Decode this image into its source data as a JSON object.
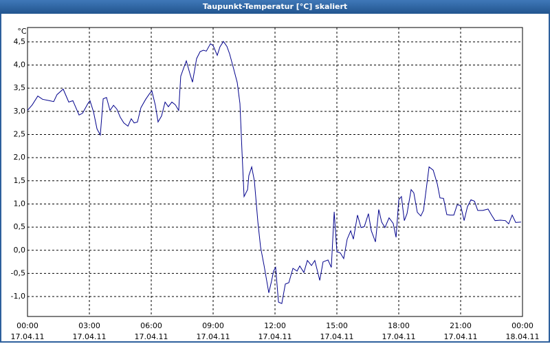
{
  "chart_data": {
    "type": "line",
    "title": "Taupunkt-Temperatur [°C] skaliert",
    "ylabel": "°C",
    "color": "#00008b",
    "grid": true,
    "xlim": [
      0,
      24
    ],
    "ylim": [
      -1.43,
      4.81
    ],
    "xticks": [
      {
        "value": 0,
        "label": "00:00\n17.04.11"
      },
      {
        "value": 3,
        "label": "03:00\n17.04.11"
      },
      {
        "value": 6,
        "label": "06:00\n17.04.11"
      },
      {
        "value": 9,
        "label": "09:00\n17.04.11"
      },
      {
        "value": 12,
        "label": "12:00\n17.04.11"
      },
      {
        "value": 15,
        "label": "15:00\n17.04.11"
      },
      {
        "value": 18,
        "label": "18:00\n17.04.11"
      },
      {
        "value": 21,
        "label": "21:00\n17.04.11"
      },
      {
        "value": 24,
        "label": "00:00\n18.04.11"
      }
    ],
    "yticks": [
      {
        "value": -1.0,
        "label": "-1,0"
      },
      {
        "value": -0.5,
        "label": "-0,5"
      },
      {
        "value": 0.0,
        "label": "0,0"
      },
      {
        "value": 0.5,
        "label": "0,5"
      },
      {
        "value": 1.0,
        "label": "1,0"
      },
      {
        "value": 1.5,
        "label": "1,5"
      },
      {
        "value": 2.0,
        "label": "2,0"
      },
      {
        "value": 2.5,
        "label": "2,5"
      },
      {
        "value": 3.0,
        "label": "3,0"
      },
      {
        "value": 3.5,
        "label": "3,5"
      },
      {
        "value": 4.0,
        "label": "4,0"
      },
      {
        "value": 4.5,
        "label": "4,5"
      }
    ],
    "x": [
      0,
      0.23,
      0.5,
      0.73,
      1.07,
      1.27,
      1.43,
      1.73,
      2.0,
      2.2,
      2.5,
      2.67,
      2.93,
      3.03,
      3.2,
      3.37,
      3.53,
      3.67,
      3.83,
      4.0,
      4.17,
      4.33,
      4.5,
      4.67,
      4.87,
      5.03,
      5.17,
      5.33,
      5.5,
      5.73,
      5.93,
      6.03,
      6.2,
      6.33,
      6.5,
      6.67,
      6.83,
      7.0,
      7.17,
      7.33,
      7.43,
      7.6,
      7.7,
      7.87,
      8.0,
      8.2,
      8.37,
      8.53,
      8.67,
      8.87,
      9.0,
      9.2,
      9.33,
      9.5,
      9.67,
      9.8,
      10.0,
      10.17,
      10.3,
      10.4,
      10.5,
      10.67,
      10.73,
      10.87,
      11.0,
      11.17,
      11.3,
      11.47,
      11.7,
      11.83,
      11.93,
      12.03,
      12.17,
      12.33,
      12.5,
      12.67,
      12.87,
      13.07,
      13.2,
      13.4,
      13.57,
      13.77,
      13.93,
      14.17,
      14.33,
      14.57,
      14.73,
      14.87,
      15.0,
      15.17,
      15.33,
      15.5,
      15.67,
      15.8,
      16.0,
      16.17,
      16.33,
      16.53,
      16.67,
      16.87,
      17.03,
      17.17,
      17.33,
      17.53,
      17.73,
      17.87,
      18.0,
      18.13,
      18.27,
      18.4,
      18.6,
      18.73,
      18.9,
      19.07,
      19.2,
      19.47,
      19.67,
      19.87,
      20.0,
      20.17,
      20.33,
      20.5,
      20.67,
      20.83,
      21.0,
      21.17,
      21.33,
      21.5,
      21.67,
      21.83,
      22.07,
      22.33,
      22.5,
      22.67,
      22.93,
      23.17,
      23.33,
      23.5,
      23.67,
      23.93
    ],
    "values": [
      3.02,
      3.14,
      3.33,
      3.26,
      3.23,
      3.21,
      3.36,
      3.48,
      3.2,
      3.23,
      2.92,
      2.96,
      3.17,
      3.23,
      2.99,
      2.62,
      2.49,
      3.27,
      3.3,
      3.02,
      3.13,
      3.05,
      2.87,
      2.75,
      2.68,
      2.84,
      2.75,
      2.77,
      3.08,
      3.26,
      3.39,
      3.44,
      3.13,
      2.77,
      2.9,
      3.2,
      3.1,
      3.2,
      3.14,
      3.02,
      3.76,
      3.97,
      4.09,
      3.82,
      3.63,
      4.14,
      4.29,
      4.32,
      4.3,
      4.46,
      4.42,
      4.21,
      4.39,
      4.51,
      4.4,
      4.24,
      3.91,
      3.62,
      3.17,
      2.13,
      1.16,
      1.31,
      1.61,
      1.8,
      1.5,
      0.61,
      0.07,
      -0.33,
      -0.92,
      -0.67,
      -0.45,
      -0.37,
      -1.12,
      -1.15,
      -0.73,
      -0.7,
      -0.39,
      -0.45,
      -0.34,
      -0.48,
      -0.22,
      -0.33,
      -0.22,
      -0.65,
      -0.25,
      -0.21,
      -0.37,
      0.83,
      -0.03,
      -0.06,
      -0.18,
      0.24,
      0.42,
      0.24,
      0.76,
      0.49,
      0.51,
      0.79,
      0.42,
      0.18,
      0.88,
      0.61,
      0.49,
      0.7,
      0.58,
      0.28,
      1.09,
      1.16,
      0.64,
      0.79,
      1.31,
      1.24,
      0.82,
      0.74,
      0.86,
      1.8,
      1.73,
      1.43,
      1.13,
      1.12,
      0.77,
      0.76,
      0.76,
      0.98,
      0.97,
      0.64,
      0.94,
      1.09,
      1.06,
      0.86,
      0.86,
      0.89,
      0.76,
      0.64,
      0.65,
      0.64,
      0.57,
      0.76,
      0.6,
      0.61
    ]
  }
}
